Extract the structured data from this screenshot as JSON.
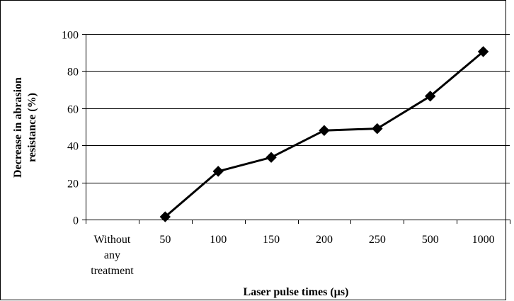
{
  "chart_data": {
    "type": "line",
    "title": "",
    "xlabel": "Laser pulse times (µs)",
    "ylabel": "Decrease in abrasion resistance (%)",
    "ylabel_lines": [
      "Decrease in abrasion",
      "resistance (%)"
    ],
    "categories": [
      "Without any treatment",
      "50",
      "100",
      "150",
      "200",
      "250",
      "500",
      "1000"
    ],
    "category_lines": [
      [
        "Without",
        "any",
        "treatment"
      ],
      [
        "50"
      ],
      [
        "100"
      ],
      [
        "150"
      ],
      [
        "200"
      ],
      [
        "250"
      ],
      [
        "500"
      ],
      [
        "1000"
      ]
    ],
    "series": [
      {
        "values": [
          null,
          1.5,
          26,
          33.5,
          48,
          49,
          66.5,
          90.5
        ]
      }
    ],
    "ylim": [
      0,
      100
    ],
    "yticks": [
      0,
      20,
      40,
      60,
      80,
      100
    ],
    "grid": true,
    "marker": "diamond",
    "legend": "none",
    "colors": {
      "line": "#000000",
      "grid": "#000000"
    }
  }
}
